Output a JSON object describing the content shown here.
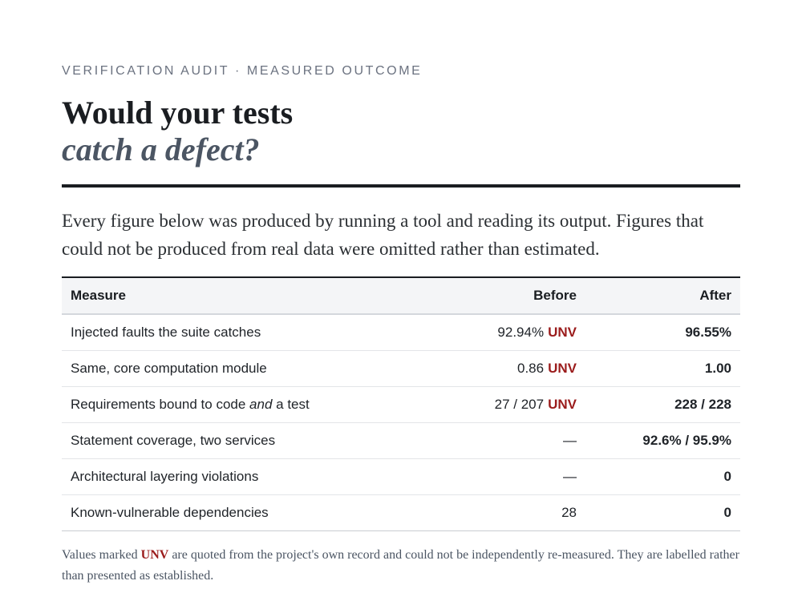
{
  "header": {
    "eyebrow": "VERIFICATION AUDIT · MEASURED OUTCOME",
    "title_line1": "Would your tests",
    "title_line2": "catch a defect?"
  },
  "intro": "Every figure below was produced by running a tool and reading its output. Figures that could not be produced from real data were omitted rather than estimated.",
  "table": {
    "columns": [
      "Measure",
      "Before",
      "After"
    ],
    "unverified_tag": "UNV",
    "rows": [
      {
        "measure": "Injected faults the suite catches",
        "before": "92.94%",
        "before_unverified": true,
        "after": "96.55%"
      },
      {
        "measure": "Same, core computation module",
        "before": "0.86",
        "before_unverified": true,
        "after": "1.00"
      },
      {
        "measure_pre": "Requirements bound to code ",
        "measure_em": "and",
        "measure_post": " a test",
        "before": "27 / 207",
        "before_unverified": true,
        "after": "228 / 228"
      },
      {
        "measure": "Statement coverage, two services",
        "before": "—",
        "before_unverified": false,
        "after": "92.6% / 95.9%"
      },
      {
        "measure": "Architectural layering violations",
        "before": "—",
        "before_unverified": false,
        "after": "0"
      },
      {
        "measure": "Known-vulnerable dependencies",
        "before": "28",
        "before_unverified": false,
        "after": "0"
      }
    ]
  },
  "footnote": {
    "prefix": "Values marked ",
    "tag": "UNV",
    "suffix": " are quoted from the project's own record and could not be independently re-measured. They are labelled rather than presented as established."
  },
  "colors": {
    "unverified": "#9b1c1c",
    "after_value": "#257a3e",
    "rule": "#1a1d21"
  }
}
